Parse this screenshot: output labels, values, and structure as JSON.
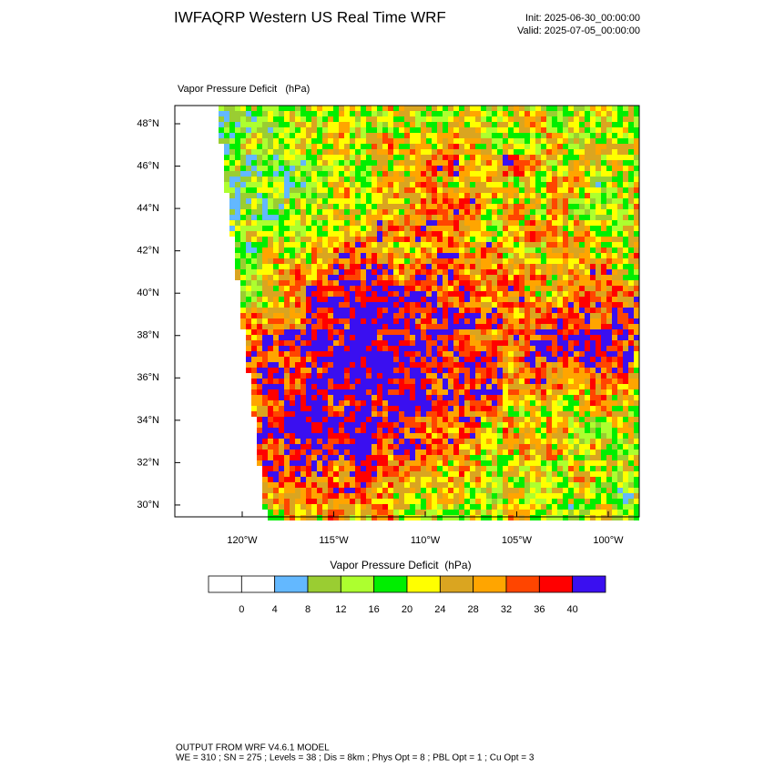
{
  "header": {
    "title": "IWFAQRP Western US Real Time WRF",
    "init": "Init: 2025-06-30_00:00:00",
    "valid": "Valid: 2025-07-05_00:00:00"
  },
  "map": {
    "label": "Vapor Pressure Deficit   (hPa)",
    "lat_labels": [
      "48°N",
      "46°N",
      "44°N",
      "42°N",
      "40°N",
      "38°N",
      "36°N",
      "34°N",
      "32°N",
      "30°N"
    ],
    "lon_labels": [
      "120°W",
      "115°W",
      "110°W",
      "105°W",
      "100°W"
    ]
  },
  "colorbar": {
    "title": "Vapor Pressure Deficit  (hPa)",
    "colors": [
      "#ffffff",
      "#ffffff",
      "#63b8ff",
      "#9acd32",
      "#adff2f",
      "#00ee00",
      "#ffff00",
      "#daa520",
      "#ffa500",
      "#ff4500",
      "#ff0000",
      "#3a0ff0"
    ],
    "labels": [
      "0",
      "4",
      "8",
      "12",
      "16",
      "20",
      "24",
      "28",
      "32",
      "36",
      "40"
    ]
  },
  "footer": {
    "line1": "OUTPUT FROM WRF V4.6.1 MODEL",
    "line2": "WE = 310 ; SN = 275 ; Levels = 38 ; Dis = 8km ; Phys Opt = 8 ; PBL Opt = 1 ; Cu Opt = 3"
  }
}
